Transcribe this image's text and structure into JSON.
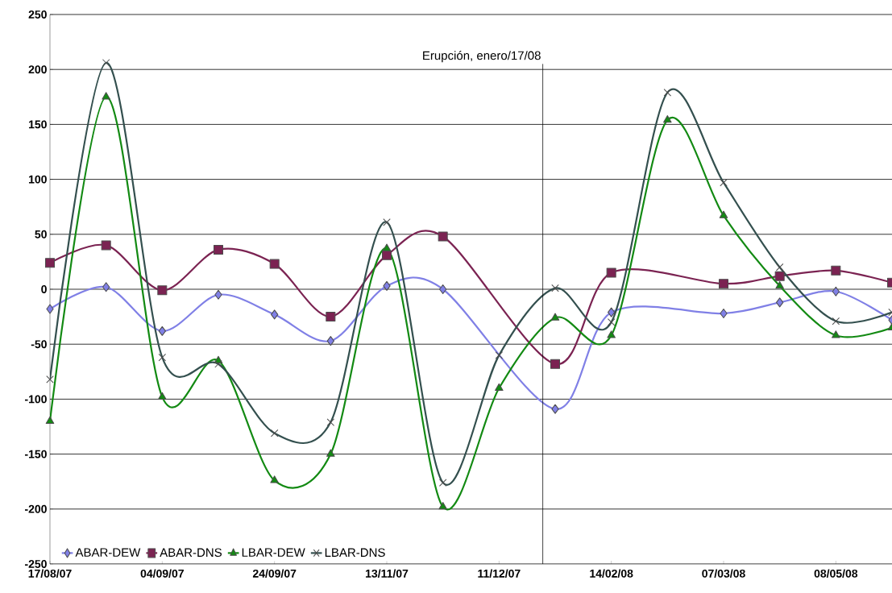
{
  "chart_data": {
    "type": "line",
    "categories": [
      "17/08/07",
      null,
      "04/09/07",
      null,
      "24/09/07",
      null,
      "13/11/07",
      null,
      "11/12/07",
      null,
      "14/02/08",
      null,
      "07/03/08",
      null,
      "08/05/08",
      null
    ],
    "series": [
      {
        "name": "ABAR-DEW",
        "color": "#8080e6",
        "marker": "diamond",
        "values": [
          -18,
          2,
          -38,
          -5,
          -23,
          -47,
          3,
          0,
          null,
          -109,
          -21,
          null,
          -22,
          -12,
          -2,
          -28
        ]
      },
      {
        "name": "ABAR-DNS",
        "color": "#7b2352",
        "marker": "square",
        "values": [
          24,
          40,
          -1,
          36,
          23,
          -25,
          31,
          48,
          null,
          -68,
          15,
          null,
          5,
          12,
          17,
          6
        ]
      },
      {
        "name": "LBAR-DEW",
        "color": "#138a13",
        "marker": "triangle",
        "values": [
          -120,
          175,
          -98,
          -65,
          -174,
          -150,
          37,
          -198,
          -90,
          -26,
          -42,
          154,
          67,
          3,
          -42,
          -35
        ]
      },
      {
        "name": "LBAR-DNS",
        "color": "#34504f",
        "marker": "cross",
        "values": [
          -82,
          206,
          -62,
          -68,
          -131,
          -121,
          61,
          -176,
          -60,
          1,
          -30,
          179,
          97,
          20,
          -29,
          -21
        ]
      }
    ],
    "ylim": [
      -250,
      250
    ],
    "yticks": [
      -250,
      -200,
      -150,
      -100,
      -50,
      0,
      50,
      100,
      150,
      200,
      250
    ],
    "grid": "y",
    "legend": "bottom left",
    "annotations": [
      "Erupción, enero/17/08"
    ]
  }
}
